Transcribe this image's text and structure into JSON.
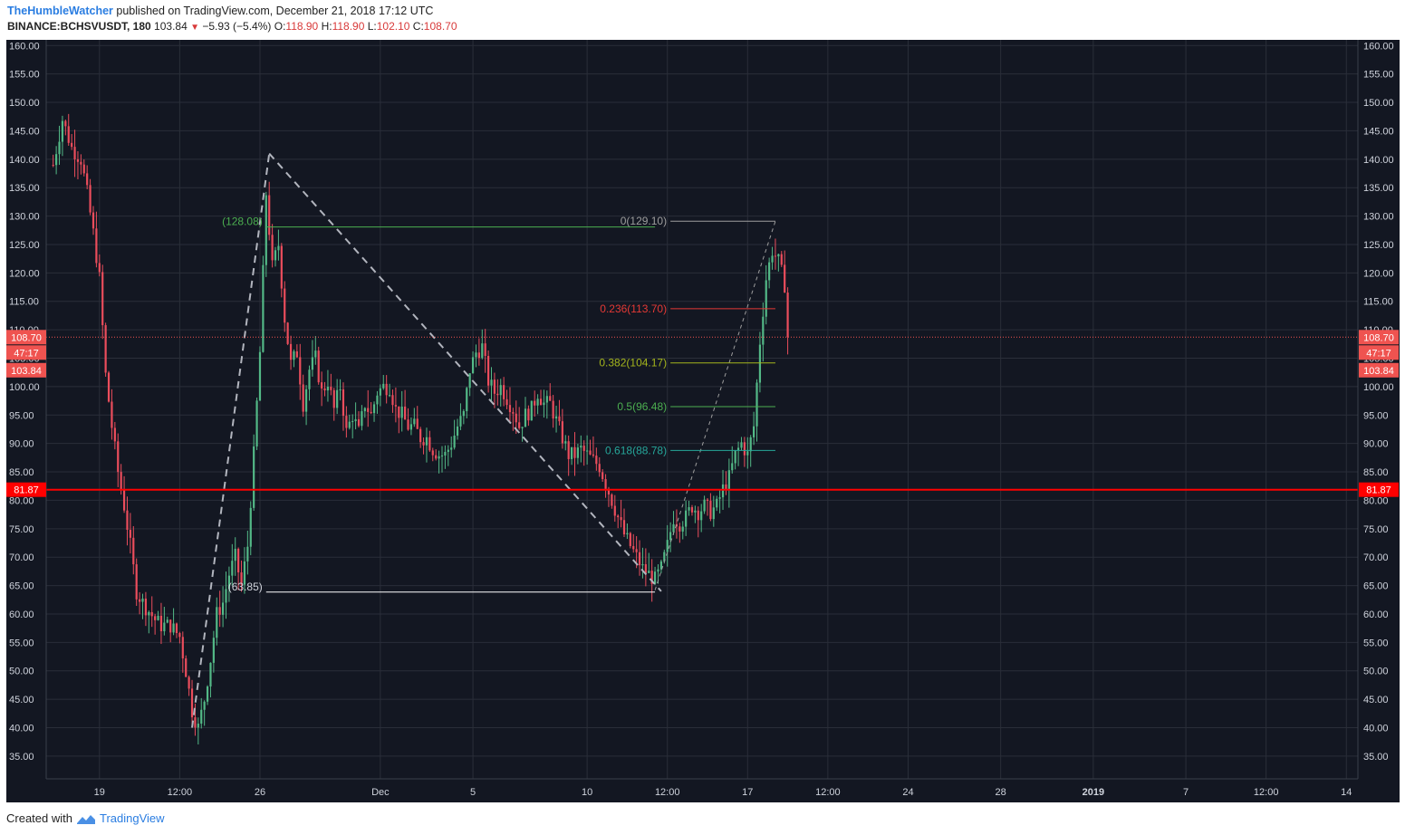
{
  "header": {
    "author": "TheHumbleWatcher",
    "published_text": "published on TradingView.com, December 21, 2018 17:12 UTC",
    "symbol": "BINANCE:BCHSVUSDT, 180",
    "last": "103.84",
    "change": "−5.93 (−5.4%)",
    "o_label": "O:",
    "o_value": "118.90",
    "h_label": "H:",
    "h_value": "118.90",
    "l_label": "L:",
    "l_value": "102.10",
    "c_label": "C:",
    "c_value": "108.70"
  },
  "footer": {
    "created_with": "Created with",
    "brand": "TradingView"
  },
  "chart_data": {
    "type": "candlestick",
    "ylim": [
      31,
      161
    ],
    "y_ticks": [
      35,
      40,
      45,
      50,
      55,
      60,
      65,
      70,
      75,
      80,
      85,
      90,
      95,
      100,
      105,
      110,
      115,
      120,
      125,
      130,
      135,
      140,
      145,
      150,
      155,
      160
    ],
    "x_tick_labels": [
      "19",
      "12:00",
      "26",
      "Dec",
      "5",
      "10",
      "12:00",
      "17",
      "12:00",
      "24",
      "28",
      "2019",
      "7",
      "12:00",
      "14"
    ],
    "x_tick_bold": [
      false,
      false,
      false,
      false,
      false,
      false,
      false,
      false,
      false,
      false,
      false,
      true,
      false,
      false,
      false
    ],
    "x_tick_index": [
      15,
      41,
      67,
      106,
      136,
      173,
      199,
      225,
      251,
      277,
      307,
      337,
      367,
      393,
      419
    ],
    "grid": true,
    "colors": {
      "background": "#131722",
      "grid": "#2a2e39",
      "up": "#53b987",
      "down": "#eb4d5c",
      "axis_text": "#333333",
      "support": "#ff0000",
      "price_line": "#ef5350"
    },
    "price_path": [
      [
        0,
        139
      ],
      [
        3,
        147
      ],
      [
        6,
        142
      ],
      [
        9,
        140
      ],
      [
        11,
        134
      ],
      [
        13,
        127
      ],
      [
        15,
        119
      ],
      [
        17,
        102
      ],
      [
        19,
        93
      ],
      [
        21,
        85
      ],
      [
        23,
        79
      ],
      [
        25,
        72
      ],
      [
        27,
        64
      ],
      [
        29,
        62
      ],
      [
        31,
        60.5
      ],
      [
        33,
        59
      ],
      [
        35,
        58
      ],
      [
        38,
        58
      ],
      [
        41,
        56
      ],
      [
        43,
        50
      ],
      [
        45,
        43
      ],
      [
        47,
        40
      ],
      [
        49,
        45
      ],
      [
        51,
        52
      ],
      [
        53,
        60
      ],
      [
        55,
        62
      ],
      [
        57,
        67
      ],
      [
        59,
        70
      ],
      [
        61,
        65
      ],
      [
        63,
        72
      ],
      [
        65,
        88
      ],
      [
        67,
        106
      ],
      [
        69,
        134
      ],
      [
        71,
        121
      ],
      [
        73,
        125
      ],
      [
        75,
        112
      ],
      [
        77,
        104
      ],
      [
        79,
        106
      ],
      [
        81,
        97
      ],
      [
        83,
        103
      ],
      [
        85,
        105
      ],
      [
        87,
        99
      ],
      [
        89,
        101
      ],
      [
        91,
        96
      ],
      [
        93,
        100
      ],
      [
        95,
        92
      ],
      [
        97,
        95
      ],
      [
        99,
        92
      ],
      [
        101,
        97
      ],
      [
        103,
        95
      ],
      [
        105,
        99
      ],
      [
        107,
        100
      ],
      [
        109,
        100
      ],
      [
        111,
        96
      ],
      [
        113,
        95
      ],
      [
        115,
        93
      ],
      [
        117,
        93
      ],
      [
        119,
        91
      ],
      [
        121,
        91
      ],
      [
        123,
        89
      ],
      [
        125,
        88
      ],
      [
        127,
        88
      ],
      [
        129,
        90
      ],
      [
        131,
        93
      ],
      [
        133,
        95
      ],
      [
        135,
        103
      ],
      [
        137,
        106
      ],
      [
        139,
        107
      ],
      [
        141,
        101
      ],
      [
        143,
        99
      ],
      [
        145,
        100
      ],
      [
        147,
        98
      ],
      [
        149,
        96
      ],
      [
        151,
        93
      ],
      [
        153,
        95
      ],
      [
        155,
        96
      ],
      [
        157,
        99
      ],
      [
        159,
        97
      ],
      [
        161,
        97
      ],
      [
        163,
        94
      ],
      [
        165,
        91
      ],
      [
        167,
        88
      ],
      [
        169,
        88
      ],
      [
        171,
        89
      ],
      [
        173,
        88
      ],
      [
        175,
        87
      ],
      [
        177,
        86
      ],
      [
        179,
        83
      ],
      [
        181,
        80
      ],
      [
        183,
        77
      ],
      [
        185,
        74
      ],
      [
        187,
        72
      ],
      [
        189,
        70
      ],
      [
        191,
        68
      ],
      [
        193,
        67
      ],
      [
        195,
        66
      ],
      [
        197,
        68
      ],
      [
        199,
        72
      ],
      [
        201,
        77
      ],
      [
        203,
        76
      ],
      [
        205,
        77
      ],
      [
        207,
        79
      ],
      [
        209,
        78
      ],
      [
        211,
        79
      ],
      [
        213,
        78
      ],
      [
        215,
        79
      ],
      [
        217,
        82
      ],
      [
        219,
        84
      ],
      [
        221,
        88
      ],
      [
        223,
        90
      ],
      [
        225,
        88
      ],
      [
        227,
        93
      ],
      [
        229,
        108
      ],
      [
        231,
        119
      ],
      [
        233,
        124
      ],
      [
        235,
        122
      ],
      [
        237,
        118
      ],
      [
        238,
        108.7
      ]
    ],
    "fib": {
      "levels": [
        {
          "ratio": 0,
          "value": 129.1,
          "label": "0(129.10)",
          "color": "#9e9e9e"
        },
        {
          "ratio": 0.236,
          "value": 113.7,
          "label": "0.236(113.70)",
          "color": "#e53935"
        },
        {
          "ratio": 0.382,
          "value": 104.17,
          "label": "0.382(104.17)",
          "color": "#a4b51c"
        },
        {
          "ratio": 0.5,
          "value": 96.48,
          "label": "0.5(96.48)",
          "color": "#4caf50"
        },
        {
          "ratio": 0.618,
          "value": 88.78,
          "label": "0.618(88.78)",
          "color": "#26a69a"
        }
      ],
      "trend_from": [
        195,
        64.2
      ],
      "trend_to": [
        234,
        129.1
      ]
    },
    "drawing": {
      "high_label": "(128.08)",
      "high_value": 128.08,
      "high_color": "#4caf50",
      "low_label": "(63.85)",
      "low_value": 63.85,
      "leg1": [
        [
          45,
          40
        ],
        [
          70,
          141
        ]
      ],
      "leg2": [
        [
          70,
          141
        ],
        [
          197,
          64
        ]
      ]
    },
    "support": {
      "value": 81.87,
      "label": "81.87"
    },
    "price_line": {
      "value": 108.7,
      "label": "108.70"
    },
    "countdown": "47:17",
    "last_close_label": "103.84",
    "last_close_value": 103.84
  }
}
